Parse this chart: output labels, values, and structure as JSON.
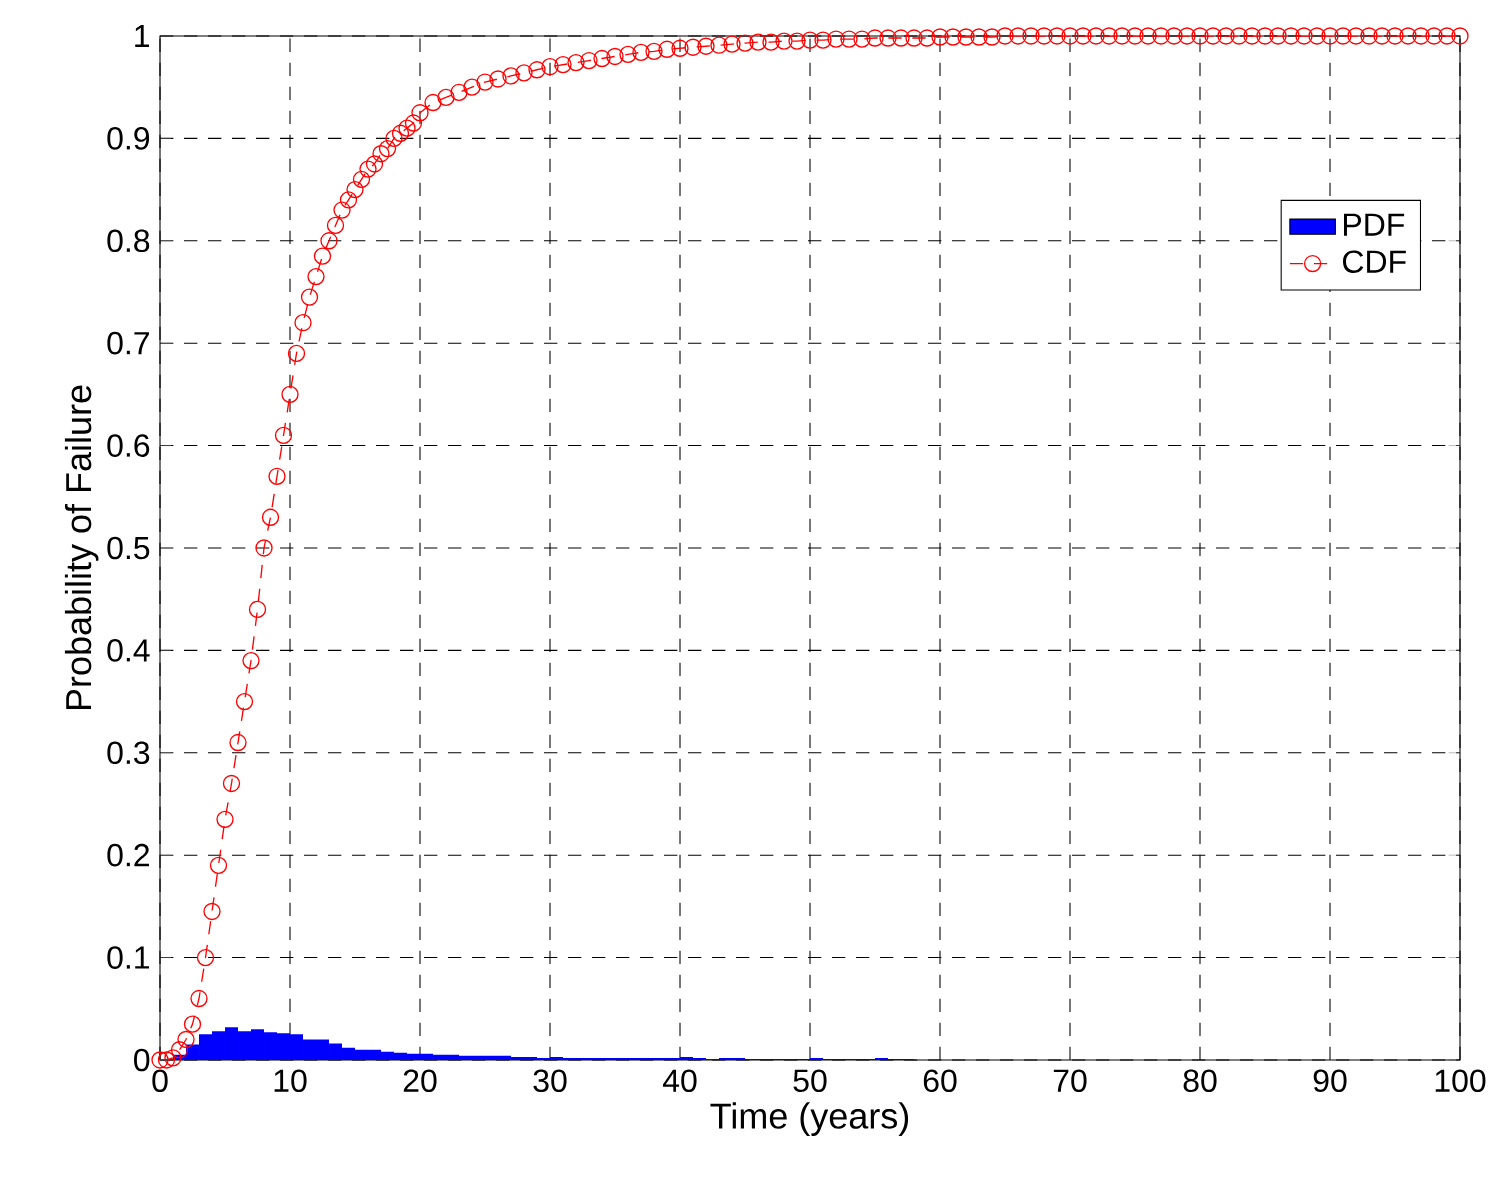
{
  "chart_data": {
    "type": "line",
    "xlabel": "Time (years)",
    "ylabel": "Probability of Failure",
    "xlim": [
      0,
      100
    ],
    "ylim": [
      0,
      1
    ],
    "xticks": [
      0,
      10,
      20,
      30,
      40,
      50,
      60,
      70,
      80,
      90,
      100
    ],
    "yticks": [
      0,
      0.1,
      0.2,
      0.3,
      0.4,
      0.5,
      0.6,
      0.7,
      0.8,
      0.9,
      1
    ],
    "grid": true,
    "legend": "top right",
    "series": [
      {
        "name": "PDF",
        "type": "histogram",
        "color": "#0000ff",
        "bins": [
          0,
          1,
          2,
          3,
          4,
          5,
          6,
          7,
          8,
          9,
          10,
          11,
          12,
          13,
          14,
          15,
          16,
          17,
          18,
          19,
          20,
          21,
          22,
          23,
          24,
          25,
          26,
          27,
          28,
          29,
          30,
          31,
          32,
          33,
          34,
          35,
          36,
          37,
          38,
          39,
          40,
          41,
          42,
          43,
          44,
          45,
          46,
          47,
          48,
          49,
          50,
          51,
          52,
          53,
          54,
          55,
          56,
          57,
          58,
          59,
          60
        ],
        "values": [
          0,
          0.005,
          0.015,
          0.025,
          0.028,
          0.032,
          0.028,
          0.03,
          0.027,
          0.026,
          0.025,
          0.02,
          0.02,
          0.016,
          0.012,
          0.01,
          0.01,
          0.008,
          0.007,
          0.006,
          0.006,
          0.005,
          0.005,
          0.004,
          0.004,
          0.004,
          0.004,
          0.003,
          0.003,
          0.002,
          0.003,
          0.002,
          0.002,
          0.002,
          0.002,
          0.002,
          0.002,
          0.002,
          0.002,
          0.002,
          0.003,
          0.002,
          0.001,
          0.002,
          0.002,
          0.001,
          0.001,
          0.001,
          0.001,
          0.001,
          0.002,
          0.001,
          0.001,
          0.001,
          0.001,
          0.002,
          0.001,
          0.001,
          0,
          0
        ]
      },
      {
        "name": "CDF",
        "color": "#ff0000",
        "marker": "circle",
        "line_style": "dashed",
        "x": [
          0,
          0.5,
          1,
          1.5,
          2,
          2.5,
          3,
          3.5,
          4,
          4.5,
          5,
          5.5,
          6,
          6.5,
          7,
          7.5,
          8,
          8.5,
          9,
          9.5,
          10,
          10.5,
          11,
          11.5,
          12,
          12.5,
          13,
          13.5,
          14,
          14.5,
          15,
          15.5,
          16,
          16.5,
          17,
          17.5,
          18,
          18.5,
          19,
          19.5,
          20,
          21,
          22,
          23,
          24,
          25,
          26,
          27,
          28,
          29,
          30,
          31,
          32,
          33,
          34,
          35,
          36,
          37,
          38,
          39,
          40,
          41,
          42,
          43,
          44,
          45,
          46,
          47,
          48,
          49,
          50,
          51,
          52,
          53,
          54,
          55,
          56,
          57,
          58,
          59,
          60,
          61,
          62,
          63,
          64,
          65,
          66,
          67,
          68,
          69,
          70,
          71,
          72,
          73,
          74,
          75,
          76,
          77,
          78,
          79,
          80,
          81,
          82,
          83,
          84,
          85,
          86,
          87,
          88,
          89,
          90,
          91,
          92,
          93,
          94,
          95,
          96,
          97,
          98,
          99,
          100
        ],
        "values": [
          0,
          0,
          0.002,
          0.01,
          0.02,
          0.035,
          0.06,
          0.1,
          0.145,
          0.19,
          0.235,
          0.27,
          0.31,
          0.35,
          0.39,
          0.44,
          0.5,
          0.53,
          0.57,
          0.61,
          0.65,
          0.69,
          0.72,
          0.745,
          0.765,
          0.785,
          0.8,
          0.815,
          0.83,
          0.84,
          0.85,
          0.86,
          0.87,
          0.875,
          0.885,
          0.89,
          0.9,
          0.905,
          0.91,
          0.915,
          0.925,
          0.935,
          0.94,
          0.945,
          0.95,
          0.955,
          0.958,
          0.961,
          0.964,
          0.967,
          0.97,
          0.972,
          0.974,
          0.976,
          0.978,
          0.98,
          0.982,
          0.984,
          0.985,
          0.987,
          0.988,
          0.989,
          0.99,
          0.991,
          0.992,
          0.993,
          0.994,
          0.994,
          0.995,
          0.995,
          0.996,
          0.996,
          0.997,
          0.997,
          0.997,
          0.998,
          0.998,
          0.998,
          0.998,
          0.998,
          0.999,
          0.999,
          0.999,
          0.999,
          0.999,
          1,
          1,
          1,
          1,
          1,
          1,
          1,
          1,
          1,
          1,
          1,
          1,
          1,
          1,
          1,
          1,
          1,
          1,
          1,
          1,
          1,
          1,
          1,
          1,
          1,
          1,
          1,
          1,
          1,
          1,
          1,
          1,
          1,
          1,
          1,
          1
        ]
      }
    ]
  }
}
